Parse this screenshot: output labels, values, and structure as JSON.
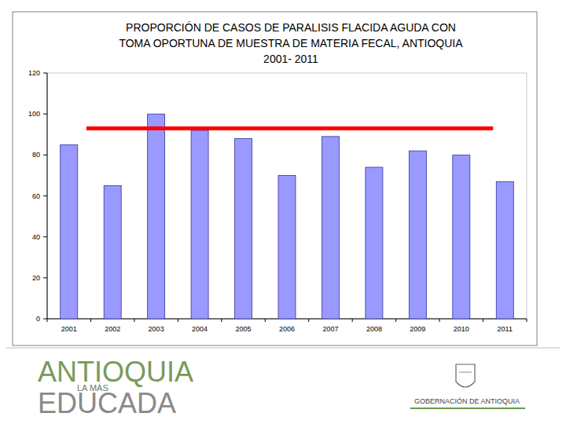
{
  "chart_data": {
    "type": "bar",
    "title": "PROPORCIÓN DE CASOS DE PARALISIS FLACIDA AGUDA CON\nTOMA OPORTUNA DE MUESTRA DE MATERIA FECAL, ANTIOQUIA\n2001- 2011",
    "categories": [
      "2001",
      "2002",
      "2003",
      "2004",
      "2005",
      "2006",
      "2007",
      "2008",
      "2009",
      "2010",
      "2011"
    ],
    "values": [
      85,
      65,
      100,
      92,
      88,
      70,
      89,
      74,
      82,
      80,
      67
    ],
    "color": "#9999ff",
    "ylim": [
      0,
      120
    ],
    "yticks": [
      0,
      20,
      40,
      60,
      80,
      100,
      120
    ],
    "grid": false,
    "reference_line": {
      "value": 93,
      "color": "#ff0000"
    }
  },
  "footer": {
    "left": [
      "ANTIOQUIA",
      "LA MÁS",
      "EDUCADA"
    ],
    "right": "GOBERNACIÓN DE ANTIOQUIA"
  }
}
